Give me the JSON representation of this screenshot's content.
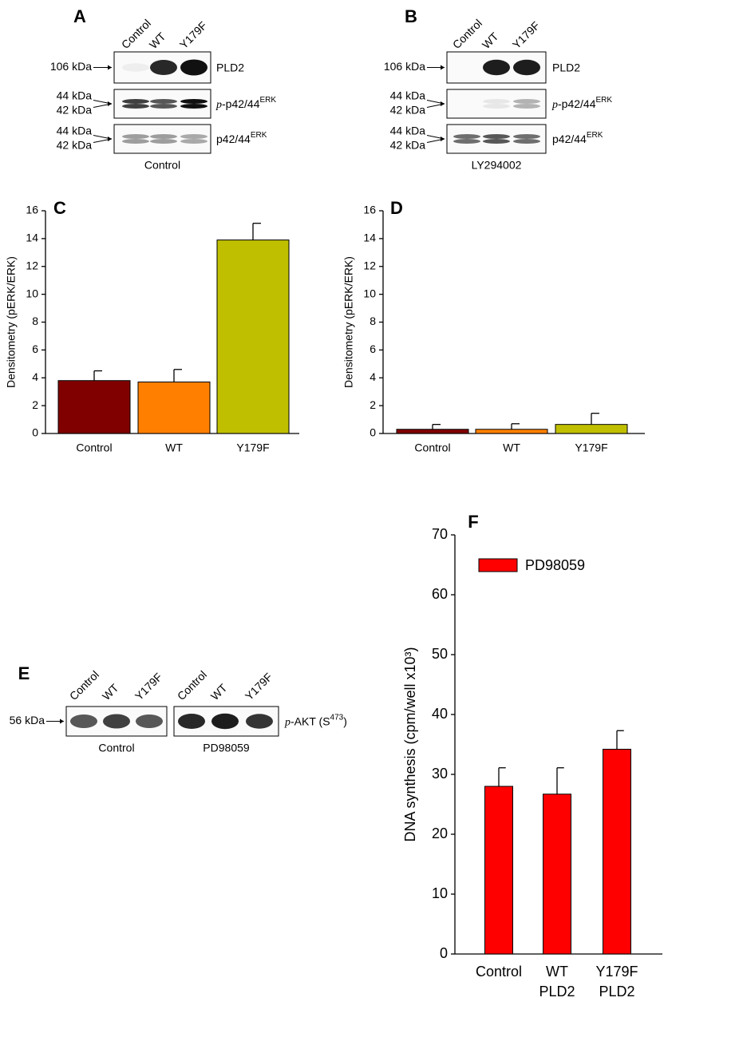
{
  "chart_data": [
    {
      "type": "bar",
      "label": "C",
      "ylabel": "Densitometry (pERK/ERK)",
      "categories": [
        "Control",
        "WT",
        "Y179F"
      ],
      "values": [
        3.8,
        3.7,
        13.9
      ],
      "errors": [
        0.7,
        0.9,
        1.2
      ],
      "colors": [
        "#800000",
        "#ff8000",
        "#bfbf00"
      ],
      "ylim": [
        0,
        16
      ],
      "yticks": [
        0,
        2,
        4,
        6,
        8,
        10,
        12,
        14,
        16
      ]
    },
    {
      "type": "bar",
      "label": "D",
      "ylabel": "Densitometry (pERK/ERK)",
      "categories": [
        "Control",
        "WT",
        "Y179F"
      ],
      "values": [
        0.3,
        0.3,
        0.65
      ],
      "errors": [
        0.35,
        0.4,
        0.8
      ],
      "colors": [
        "#800000",
        "#ff8000",
        "#bfbf00"
      ],
      "ylim": [
        0,
        16
      ],
      "yticks": [
        0,
        2,
        4,
        6,
        8,
        10,
        12,
        14,
        16
      ]
    },
    {
      "type": "bar",
      "label": "F",
      "ylabel": "DNA synthesis (cpm/well x10³)",
      "categories": [
        [
          "Control"
        ],
        [
          "WT",
          "PLD2"
        ],
        [
          "Y179F",
          "PLD2"
        ]
      ],
      "series": [
        {
          "name": "PD98059",
          "color": "#ff0000",
          "values": [
            28,
            26.7,
            34.2
          ],
          "errors": [
            3.1,
            4.4,
            3.1
          ]
        }
      ],
      "ylim": [
        0,
        70
      ],
      "yticks": [
        0,
        10,
        20,
        30,
        40,
        50,
        60,
        70
      ]
    }
  ],
  "blots": [
    {
      "label": "A",
      "groups": [
        {
          "lanes": [
            "Control",
            "WT",
            "Y179F"
          ],
          "caption": "Control"
        }
      ],
      "rows": [
        {
          "markers": [
            "106 kDa"
          ],
          "name": {
            "text": "PLD2"
          }
        },
        {
          "markers": [
            "44 kDa",
            "42 kDa"
          ],
          "name": {
            "italic": "p",
            "text": "-p42/44",
            "sup": "ERK"
          }
        },
        {
          "markers": [
            "44 kDa",
            "42 kDa"
          ],
          "name": {
            "text": "p42/44",
            "sup": "ERK"
          }
        }
      ]
    },
    {
      "label": "B",
      "groups": [
        {
          "lanes": [
            "Control",
            "WT",
            "Y179F"
          ],
          "caption": "LY294002"
        }
      ],
      "rows": [
        {
          "markers": [
            "106 kDa"
          ],
          "name": {
            "text": "PLD2"
          }
        },
        {
          "markers": [
            "44 kDa",
            "42 kDa"
          ],
          "name": {
            "italic": "p",
            "text": "-p42/44",
            "sup": "ERK"
          }
        },
        {
          "markers": [
            "44 kDa",
            "42 kDa"
          ],
          "name": {
            "text": "p42/44",
            "sup": "ERK"
          }
        }
      ]
    },
    {
      "label": "E",
      "groups": [
        {
          "lanes": [
            "Control",
            "WT",
            "Y179F"
          ],
          "caption": "Control"
        },
        {
          "lanes": [
            "Control",
            "WT",
            "Y179F"
          ],
          "caption": "PD98059"
        }
      ],
      "rows": [
        {
          "markers": [
            "56 kDa"
          ],
          "name": {
            "italic": "p",
            "text": "-AKT (S",
            "sup": "473",
            "after": ")"
          }
        }
      ]
    }
  ]
}
